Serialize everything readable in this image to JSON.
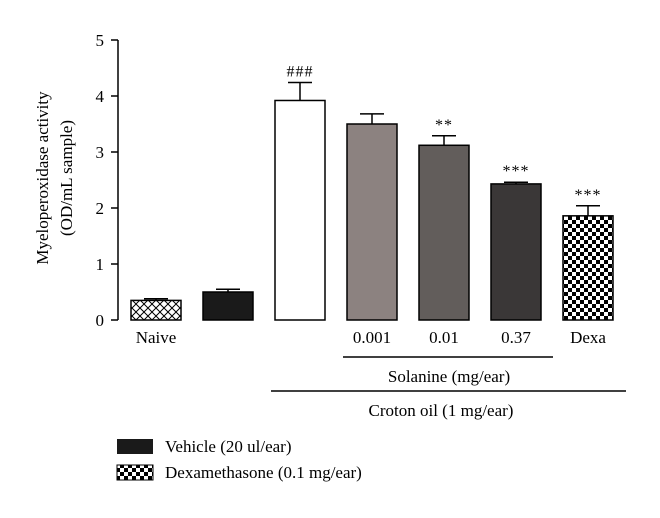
{
  "chart_data": {
    "type": "bar",
    "ylabel_line1": "Myeloperoxidase activity",
    "ylabel_line2": "(OD/mL sample)",
    "ylim": [
      0,
      5
    ],
    "yticks": [
      "0",
      "1",
      "2",
      "3",
      "4",
      "5"
    ],
    "grid": false,
    "bars": [
      {
        "category": "Naive",
        "value": 0.35,
        "error": 0.03,
        "significance": "",
        "fill": "crosshatch"
      },
      {
        "category": "",
        "value": 0.5,
        "error": 0.05,
        "significance": "",
        "fill": "#1a1a1a"
      },
      {
        "category": "",
        "value": 3.92,
        "error": 0.32,
        "significance": "###",
        "fill": "#ffffff"
      },
      {
        "category": "0.001",
        "value": 3.5,
        "error": 0.18,
        "significance": "",
        "fill": "#8c8280"
      },
      {
        "category": "0.01",
        "value": 3.12,
        "error": 0.17,
        "significance": "**",
        "fill": "#625d5b"
      },
      {
        "category": "0.37",
        "value": 2.43,
        "error": 0.03,
        "significance": "***",
        "fill": "#3a3737"
      },
      {
        "category": "Dexa",
        "value": 1.86,
        "error": 0.18,
        "significance": "***",
        "fill": "checker"
      }
    ],
    "group_labels": {
      "solanine": "Solanine (mg/ear)",
      "croton": "Croton oil (1 mg/ear)"
    },
    "legend": [
      {
        "label": "Vehicle (20 ul/ear)",
        "fill": "#1a1a1a"
      },
      {
        "label": "Dexamethasone (0.1 mg/ear)",
        "fill": "checker"
      }
    ]
  }
}
